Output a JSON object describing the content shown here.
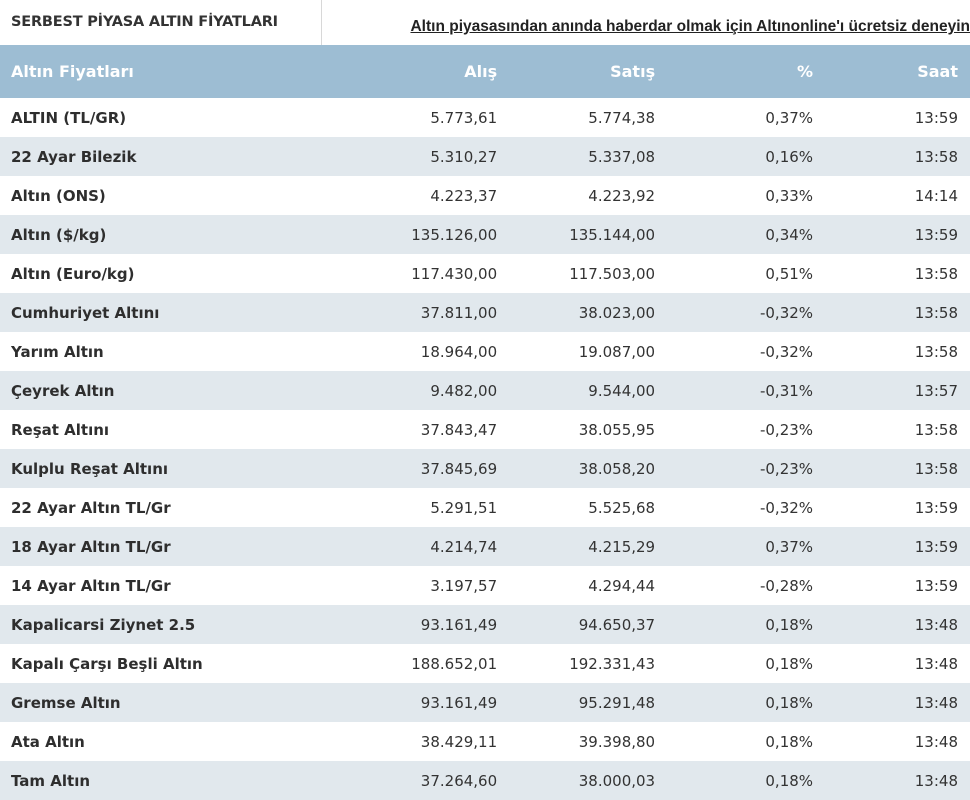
{
  "header": {
    "title": "SERBEST PİYASA ALTIN FİYATLARI",
    "promo_link": "Altın piyasasından anında haberdar olmak için Altınonline'ı ücretsiz deneyin"
  },
  "table": {
    "columns": [
      "Altın Fiyatları",
      "Alış",
      "Satış",
      "%",
      "Saat"
    ],
    "rows": [
      {
        "name": "ALTIN (TL/GR)",
        "alis": "5.773,61",
        "satis": "5.774,38",
        "pct": "0,37%",
        "saat": "13:59"
      },
      {
        "name": "22 Ayar Bilezik",
        "alis": "5.310,27",
        "satis": "5.337,08",
        "pct": "0,16%",
        "saat": "13:58"
      },
      {
        "name": "Altın (ONS)",
        "alis": "4.223,37",
        "satis": "4.223,92",
        "pct": "0,33%",
        "saat": "14:14"
      },
      {
        "name": "Altın ($/kg)",
        "alis": "135.126,00",
        "satis": "135.144,00",
        "pct": "0,34%",
        "saat": "13:59"
      },
      {
        "name": "Altın (Euro/kg)",
        "alis": "117.430,00",
        "satis": "117.503,00",
        "pct": "0,51%",
        "saat": "13:58"
      },
      {
        "name": "Cumhuriyet Altını",
        "alis": "37.811,00",
        "satis": "38.023,00",
        "pct": "-0,32%",
        "saat": "13:58"
      },
      {
        "name": "Yarım Altın",
        "alis": "18.964,00",
        "satis": "19.087,00",
        "pct": "-0,32%",
        "saat": "13:58"
      },
      {
        "name": "Çeyrek Altın",
        "alis": "9.482,00",
        "satis": "9.544,00",
        "pct": "-0,31%",
        "saat": "13:57"
      },
      {
        "name": "Reşat Altını",
        "alis": "37.843,47",
        "satis": "38.055,95",
        "pct": "-0,23%",
        "saat": "13:58"
      },
      {
        "name": "Kulplu Reşat Altını",
        "alis": "37.845,69",
        "satis": "38.058,20",
        "pct": "-0,23%",
        "saat": "13:58"
      },
      {
        "name": "22 Ayar Altın TL/Gr",
        "alis": "5.291,51",
        "satis": "5.525,68",
        "pct": "-0,32%",
        "saat": "13:59"
      },
      {
        "name": "18 Ayar Altın TL/Gr",
        "alis": "4.214,74",
        "satis": "4.215,29",
        "pct": "0,37%",
        "saat": "13:59"
      },
      {
        "name": "14 Ayar Altın TL/Gr",
        "alis": "3.197,57",
        "satis": "4.294,44",
        "pct": "-0,28%",
        "saat": "13:59"
      },
      {
        "name": "Kapalicarsi Ziynet 2.5",
        "alis": "93.161,49",
        "satis": "94.650,37",
        "pct": "0,18%",
        "saat": "13:48"
      },
      {
        "name": "Kapalı Çarşı Beşli Altın",
        "alis": "188.652,01",
        "satis": "192.331,43",
        "pct": "0,18%",
        "saat": "13:48"
      },
      {
        "name": "Gremse Altın",
        "alis": "93.161,49",
        "satis": "95.291,48",
        "pct": "0,18%",
        "saat": "13:48"
      },
      {
        "name": "Ata Altın",
        "alis": "38.429,11",
        "satis": "39.398,80",
        "pct": "0,18%",
        "saat": "13:48"
      },
      {
        "name": "Tam Altın",
        "alis": "37.264,60",
        "satis": "38.000,03",
        "pct": "0,18%",
        "saat": "13:48"
      }
    ]
  },
  "colors": {
    "header_bg": "#9dbdd3",
    "row_alt_bg": "#e1e8ed",
    "text": "#333333"
  }
}
